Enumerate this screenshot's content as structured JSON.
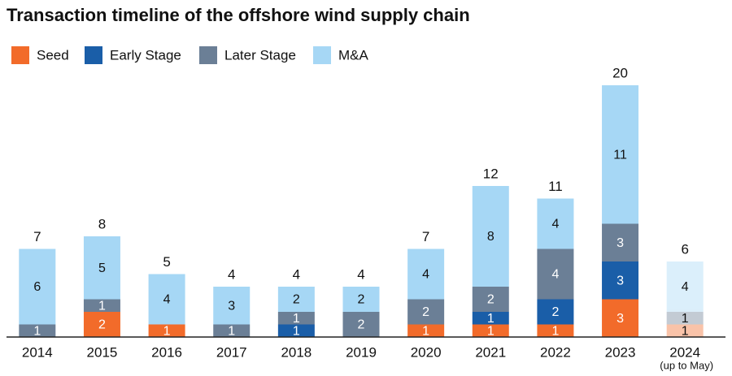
{
  "chart_data": {
    "type": "stacked_bar",
    "title": "Transaction timeline of the offshore wind supply chain",
    "categories": [
      "2014",
      "2015",
      "2016",
      "2017",
      "2018",
      "2019",
      "2020",
      "2021",
      "2022",
      "2023",
      "2024"
    ],
    "last_category_note": "(up to May)",
    "series": [
      {
        "name": "Seed",
        "color": "#f26b2a",
        "values": [
          0,
          2,
          1,
          0,
          0,
          0,
          1,
          1,
          1,
          3,
          1
        ]
      },
      {
        "name": "Early Stage",
        "color": "#1a5ea8",
        "values": [
          0,
          0,
          0,
          0,
          1,
          0,
          0,
          1,
          2,
          3,
          0
        ]
      },
      {
        "name": "Later Stage",
        "color": "#6b7f96",
        "values": [
          1,
          1,
          0,
          1,
          1,
          2,
          2,
          2,
          4,
          3,
          1
        ]
      },
      {
        "name": "M&A",
        "color": "#a6d7f5",
        "values": [
          6,
          5,
          4,
          3,
          2,
          2,
          4,
          8,
          4,
          11,
          4
        ]
      }
    ],
    "totals": [
      7,
      8,
      5,
      4,
      4,
      4,
      7,
      12,
      11,
      20,
      6
    ],
    "partial_opacity": 0.4,
    "ylim": [
      0,
      20
    ],
    "legend": "top-left"
  }
}
